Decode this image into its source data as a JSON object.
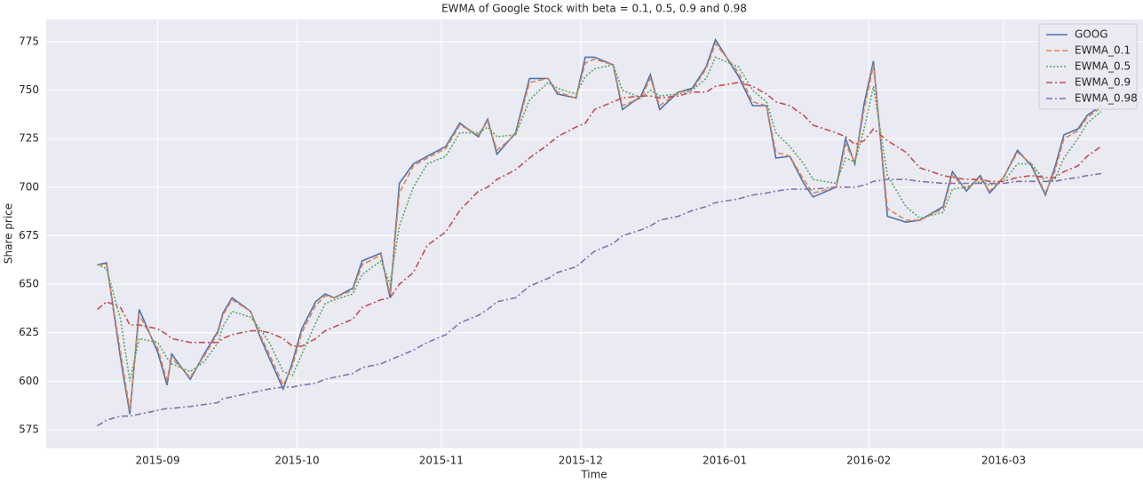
{
  "chart_data": {
    "type": "line",
    "title": "EWMA of Google Stock with beta = 0.1, 0.5, 0.9 and 0.98",
    "x_label": "Time",
    "y_label": "Share price",
    "x": [
      "2015-08-19",
      "2015-08-21",
      "2015-08-24",
      "2015-08-26",
      "2015-08-28",
      "2015-09-01",
      "2015-09-03",
      "2015-09-04",
      "2015-09-08",
      "2015-09-11",
      "2015-09-14",
      "2015-09-15",
      "2015-09-17",
      "2015-09-21",
      "2015-09-23",
      "2015-09-25",
      "2015-09-28",
      "2015-09-30",
      "2015-10-02",
      "2015-10-05",
      "2015-10-07",
      "2015-10-09",
      "2015-10-13",
      "2015-10-15",
      "2015-10-19",
      "2015-10-21",
      "2015-10-23",
      "2015-10-26",
      "2015-10-29",
      "2015-11-02",
      "2015-11-05",
      "2015-11-09",
      "2015-11-11",
      "2015-11-13",
      "2015-11-17",
      "2015-11-20",
      "2015-11-24",
      "2015-11-26",
      "2015-11-30",
      "2015-12-02",
      "2015-12-04",
      "2015-12-08",
      "2015-12-10",
      "2015-12-14",
      "2015-12-16",
      "2015-12-18",
      "2015-12-22",
      "2015-12-25",
      "2015-12-28",
      "2015-12-30",
      "2016-01-04",
      "2016-01-07",
      "2016-01-10",
      "2016-01-12",
      "2016-01-15",
      "2016-01-18",
      "2016-01-20",
      "2016-01-25",
      "2016-01-27",
      "2016-01-29",
      "2016-01-31",
      "2016-02-02",
      "2016-02-05",
      "2016-02-09",
      "2016-02-12",
      "2016-02-17",
      "2016-02-19",
      "2016-02-22",
      "2016-02-25",
      "2016-02-27",
      "2016-03-01",
      "2016-03-04",
      "2016-03-07",
      "2016-03-10",
      "2016-03-12",
      "2016-03-14",
      "2016-03-17",
      "2016-03-19",
      "2016-03-22"
    ],
    "series": [
      {
        "name": "GOOG",
        "color": "#4c72b0",
        "linestyle": "solid",
        "values": [
          660,
          661,
          612,
          583,
          637,
          615,
          598,
          614,
          601,
          614,
          626,
          635,
          643,
          636,
          623,
          612,
          596,
          610,
          627,
          641,
          645,
          643,
          648,
          662,
          666,
          643,
          702,
          712,
          716,
          721,
          733,
          726,
          735,
          717,
          728,
          756,
          756,
          748,
          746,
          767,
          767,
          763,
          740,
          747,
          758,
          740,
          749,
          751,
          762,
          776,
          757,
          742,
          742,
          715,
          716,
          702,
          695,
          700,
          725,
          712,
          743,
          765,
          685,
          682,
          683,
          690,
          708,
          698,
          706,
          697,
          705,
          719,
          711,
          696,
          710,
          727,
          730,
          737,
          742
        ]
      },
      {
        "name": "EWMA_0.1",
        "color": "#dd8452",
        "linestyle": "dashed",
        "values": [
          660,
          660,
          615,
          585,
          634,
          617,
          600,
          612,
          602,
          613,
          625,
          634,
          642,
          636,
          624,
          614,
          598,
          608,
          625,
          639,
          644,
          643,
          647,
          660,
          665,
          645,
          697,
          711,
          715,
          720,
          732,
          727,
          734,
          719,
          727,
          754,
          756,
          749,
          746,
          764,
          766,
          763,
          742,
          746,
          756,
          742,
          749,
          750,
          761,
          774,
          759,
          744,
          742,
          718,
          716,
          704,
          697,
          700,
          722,
          713,
          740,
          763,
          689,
          683,
          683,
          689,
          706,
          699,
          705,
          698,
          705,
          718,
          712,
          697,
          708,
          725,
          729,
          736,
          741
        ]
      },
      {
        "name": "EWMA_0.5",
        "color": "#55a868",
        "linestyle": "dotted",
        "values": [
          660,
          658,
          632,
          600,
          622,
          620,
          612,
          609,
          605,
          610,
          620,
          628,
          636,
          633,
          627,
          620,
          605,
          603,
          614,
          630,
          640,
          642,
          645,
          655,
          662,
          650,
          680,
          700,
          712,
          716,
          728,
          728,
          731,
          726,
          727,
          745,
          754,
          751,
          748,
          757,
          761,
          763,
          750,
          746,
          750,
          747,
          748,
          750,
          756,
          767,
          762,
          750,
          744,
          728,
          721,
          712,
          704,
          702,
          715,
          713,
          730,
          752,
          706,
          690,
          684,
          687,
          699,
          700,
          703,
          701,
          703,
          712,
          712,
          703,
          704,
          715,
          725,
          733,
          739
        ]
      },
      {
        "name": "EWMA_0.9",
        "color": "#c44e52",
        "linestyle": "dashdot",
        "values": [
          637,
          641,
          638,
          629,
          629,
          627,
          624,
          622,
          620,
          620,
          620,
          622,
          624,
          626,
          626,
          625,
          622,
          618,
          618,
          622,
          626,
          628,
          632,
          638,
          642,
          643,
          650,
          656,
          670,
          677,
          688,
          698,
          700,
          704,
          709,
          715,
          722,
          726,
          731,
          733,
          740,
          744,
          746,
          747,
          747,
          746,
          747,
          749,
          749,
          752,
          754,
          752,
          748,
          744,
          742,
          737,
          732,
          728,
          726,
          722,
          724,
          730,
          724,
          718,
          710,
          706,
          705,
          704,
          704,
          703,
          703,
          705,
          706,
          705,
          705,
          708,
          711,
          716,
          721
        ]
      },
      {
        "name": "EWMA_0.98",
        "color": "#8172b3",
        "linestyle": "dashdot",
        "values": [
          577,
          580,
          582,
          582,
          583,
          585,
          586,
          586,
          587,
          588,
          589,
          591,
          592,
          594,
          595,
          596,
          597,
          597,
          598,
          599,
          601,
          602,
          604,
          607,
          609,
          611,
          613,
          616,
          620,
          624,
          630,
          634,
          637,
          641,
          643,
          649,
          653,
          656,
          659,
          663,
          667,
          671,
          675,
          678,
          680,
          683,
          685,
          688,
          690,
          692,
          694,
          696,
          697,
          698,
          699,
          699,
          699,
          700,
          700,
          700,
          701,
          703,
          704,
          704,
          703,
          702,
          702,
          702,
          702,
          702,
          702,
          703,
          703,
          703,
          703,
          704,
          705,
          706,
          707
        ]
      }
    ],
    "xlim": [
      "2015-08-08",
      "2016-03-31"
    ],
    "xticks": [
      "2015-09",
      "2015-10",
      "2015-11",
      "2015-12",
      "2016-01",
      "2016-02",
      "2016-03"
    ],
    "ylim": [
      565.4,
      786.4
    ],
    "yticks": [
      575,
      600,
      625,
      650,
      675,
      700,
      725,
      750,
      775
    ],
    "grid": true,
    "legend": "upper right"
  }
}
